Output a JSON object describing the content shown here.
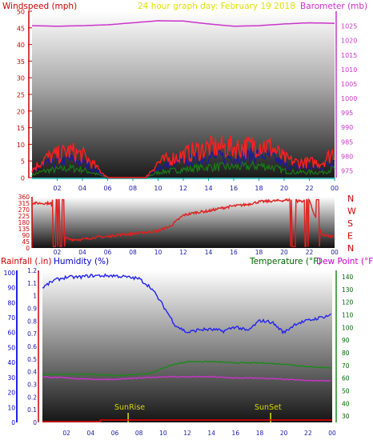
{
  "colors": {
    "wind": "#cc0000",
    "gust": "#ff2020",
    "wind_mid": "#1a1aa0",
    "wind_low": "#1a7a1a",
    "barometer": "#cc33cc",
    "direction": "#e02020",
    "humidity": "#2222ee",
    "temperature": "#1a8a1a",
    "dewpoint": "#cc33cc",
    "rain": "#ee0000",
    "date_text": "#e0e000",
    "rain_label": "#cc0000",
    "humidity_label": "#0000cc",
    "temp_label": "#006600",
    "dew_label": "#cc00cc"
  },
  "panel1": {
    "left_title": "Windspeed (mph)",
    "center_title": "24 hour graph day:  February 19 2018",
    "right_title": "Barometer (mb)"
  },
  "panel2": {
    "compass_labels": [
      "N",
      "W",
      "S",
      "E",
      "N"
    ]
  },
  "panel3": {
    "left_title_1": "Rainfall (.in)",
    "left_title_2": "Humidity (%)",
    "right_title_1": "Temperature (°F)",
    "right_title_2": "Dew Point (°F)",
    "sunrise_label": "SunRise",
    "sunset_label": "SunSet"
  },
  "chart_data": [
    {
      "type": "line",
      "title": "24 hour graph day:  February 19 2018",
      "xlabel": "",
      "x_ticks": [
        "02",
        "04",
        "06",
        "08",
        "10",
        "12",
        "14",
        "16",
        "18",
        "20",
        "22",
        "00"
      ],
      "y_left": {
        "label": "Windspeed (mph)",
        "ticks": [
          0,
          5,
          10,
          15,
          20,
          25,
          30,
          35,
          40,
          45,
          50
        ],
        "lim": [
          0,
          50
        ]
      },
      "y_right": {
        "label": "Barometer (mb)",
        "ticks": [
          975,
          980,
          985,
          990,
          995,
          1000,
          1005,
          1010,
          1015,
          1020,
          1025
        ],
        "lim": [
          972.5,
          1030
        ]
      },
      "series": [
        {
          "name": "Windspeed (mph)",
          "axis": "left",
          "x": [
            0,
            1,
            2,
            3,
            4,
            5,
            6,
            7,
            8,
            9,
            10,
            11,
            12,
            13,
            14,
            15,
            16,
            17,
            18,
            19,
            20,
            21,
            22,
            23,
            24
          ],
          "values": [
            2,
            5,
            6,
            7,
            6,
            3,
            0,
            0,
            0,
            0,
            4,
            5,
            6,
            7,
            8,
            8,
            8,
            8,
            9,
            8,
            5,
            4,
            4,
            4,
            7
          ]
        },
        {
          "name": "Barometer (mb)",
          "axis": "right",
          "x": [
            0,
            2,
            4,
            6,
            8,
            10,
            12,
            14,
            16,
            18,
            20,
            22,
            24
          ],
          "values": [
            1025,
            1024.8,
            1025,
            1025.3,
            1026,
            1026.7,
            1026.6,
            1025.6,
            1024.8,
            1025,
            1025.6,
            1026,
            1025.8
          ]
        }
      ]
    },
    {
      "type": "line",
      "y_left": {
        "ticks": [
          0,
          45,
          90,
          135,
          180,
          225,
          270,
          315,
          360
        ],
        "lim": [
          0,
          360
        ]
      },
      "x_ticks": [
        "02",
        "04",
        "06",
        "08",
        "10",
        "12",
        "14",
        "16",
        "18",
        "20",
        "22",
        "00"
      ],
      "series": [
        {
          "name": "Wind Direction",
          "x": [
            0,
            1.5,
            2,
            3,
            4,
            5,
            6,
            7,
            8,
            9,
            10,
            11,
            12,
            13,
            14,
            15,
            16,
            17,
            18,
            19,
            20,
            20.5,
            21,
            22,
            23,
            24
          ],
          "values": [
            315,
            315,
            90,
            60,
            60,
            75,
            80,
            95,
            100,
            110,
            120,
            155,
            230,
            250,
            260,
            280,
            295,
            305,
            325,
            330,
            335,
            340,
            330,
            330,
            90,
            80
          ]
        }
      ]
    },
    {
      "type": "line",
      "x_ticks": [
        "02",
        "04",
        "06",
        "08",
        "10",
        "12",
        "14",
        "16",
        "18",
        "20",
        "22",
        "00"
      ],
      "y_left": {
        "label": "Rainfall (.in)",
        "ticks": [
          0,
          0.1,
          0.2,
          0.3,
          0.4,
          0.5,
          0.6,
          0.7,
          0.8,
          0.9,
          1,
          1.1,
          1.2
        ],
        "lim": [
          0,
          1.2
        ]
      },
      "y_left_2": {
        "label": "Humidity (%)",
        "ticks": [
          0,
          10,
          20,
          30,
          40,
          50,
          60,
          70,
          80,
          90,
          100
        ],
        "lim": [
          0,
          100
        ]
      },
      "y_right": {
        "label": "Temperature (°F)",
        "ticks": [
          30,
          40,
          50,
          60,
          70,
          80,
          90,
          100,
          110,
          120,
          130,
          140
        ],
        "lim": [
          25,
          145
        ]
      },
      "annotations": [
        "SunRise",
        "SunSet"
      ],
      "series": [
        {
          "name": "Humidity (%)",
          "x": [
            0,
            1,
            2,
            3,
            4,
            5,
            6,
            7,
            8,
            9,
            10,
            11,
            12,
            13,
            14,
            15,
            16,
            17,
            18,
            19,
            20,
            21,
            22,
            23,
            24
          ],
          "values": [
            90,
            95,
            97,
            97,
            98,
            98,
            98,
            97,
            96,
            90,
            78,
            65,
            60,
            62,
            62,
            61,
            64,
            61,
            68,
            67,
            60,
            66,
            68,
            70,
            72
          ]
        },
        {
          "name": "Temperature (°F)",
          "x": [
            0,
            2,
            4,
            6,
            8,
            9,
            10,
            11,
            12,
            14,
            16,
            18,
            20,
            22,
            24
          ],
          "values": [
            63,
            63,
            63,
            62,
            63,
            64,
            68,
            71,
            73,
            73,
            72,
            72,
            71,
            69,
            68
          ]
        },
        {
          "name": "Dew Point (°F)",
          "x": [
            0,
            2,
            4,
            6,
            8,
            10,
            12,
            14,
            16,
            18,
            20,
            22,
            24
          ],
          "values": [
            61,
            60,
            59,
            59,
            60,
            61,
            61,
            61,
            60,
            60,
            59,
            58,
            58
          ]
        },
        {
          "name": "Rainfall (.in)",
          "x": [
            0,
            24
          ],
          "values": [
            0,
            0
          ]
        }
      ]
    }
  ]
}
